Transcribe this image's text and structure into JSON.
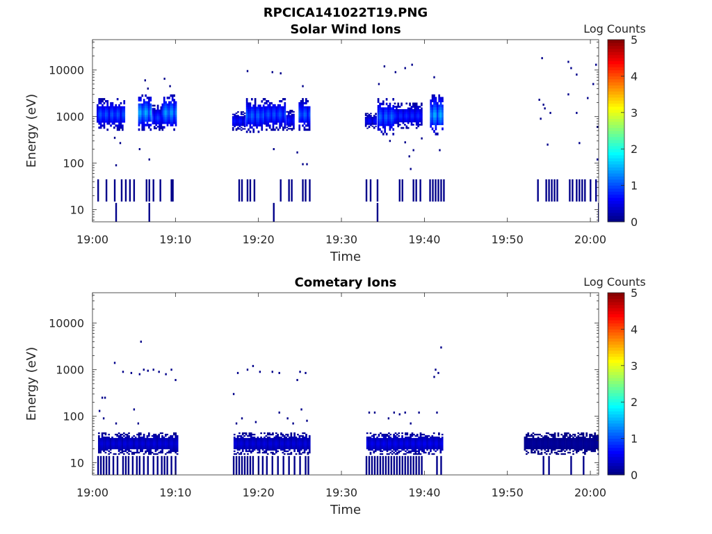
{
  "figure_title": "RPCICA141022T19.PNG",
  "colors": {
    "background": "#ffffff",
    "axis": "#262626",
    "colormap": [
      "#00008f",
      "#0000ff",
      "#00ffff",
      "#ffff00",
      "#ff0000",
      "#800000"
    ]
  },
  "chart_data": [
    {
      "type": "heatmap",
      "title": "Solar Wind Ions",
      "xlabel": "Time",
      "ylabel": "Energy (eV)",
      "yscale": "log",
      "ylim": [
        5.5,
        45000
      ],
      "xlim": [
        "19:00",
        "20:01"
      ],
      "xticks": [
        "19:00",
        "19:10",
        "19:20",
        "19:30",
        "19:40",
        "19:50",
        "20:00"
      ],
      "yticks": [
        "10",
        "100",
        "1000",
        "10000"
      ],
      "colorbar": {
        "label": "Log Counts",
        "ticks": [
          "0",
          "1",
          "2",
          "3",
          "4",
          "5"
        ],
        "range": [
          0,
          5
        ]
      },
      "grid": false,
      "blocks": [
        {
          "t_start": "19:00:30",
          "t_end": "19:03:50",
          "e_min": 500,
          "e_max": 2500,
          "peak": 1.1
        },
        {
          "t_start": "19:05:30",
          "t_end": "19:07:10",
          "e_min": 500,
          "e_max": 3000,
          "peak": 1.6
        },
        {
          "t_start": "19:07:10",
          "t_end": "19:08:20",
          "e_min": 500,
          "e_max": 1800,
          "peak": 1.0
        },
        {
          "t_start": "19:08:20",
          "t_end": "19:10:10",
          "e_min": 500,
          "e_max": 3000,
          "peak": 1.5
        },
        {
          "t_start": "19:16:50",
          "t_end": "19:18:30",
          "e_min": 500,
          "e_max": 1300,
          "peak": 0.8
        },
        {
          "t_start": "19:18:30",
          "t_end": "19:20:40",
          "e_min": 450,
          "e_max": 2500,
          "peak": 1.2
        },
        {
          "t_start": "19:20:40",
          "t_end": "19:23:20",
          "e_min": 500,
          "e_max": 2500,
          "peak": 1.1
        },
        {
          "t_start": "19:23:20",
          "t_end": "19:24:20",
          "e_min": 500,
          "e_max": 1400,
          "peak": 0.8
        },
        {
          "t_start": "19:24:50",
          "t_end": "19:26:20",
          "e_min": 500,
          "e_max": 2500,
          "peak": 1.2
        },
        {
          "t_start": "19:32:50",
          "t_end": "19:34:20",
          "e_min": 550,
          "e_max": 1200,
          "peak": 0.7
        },
        {
          "t_start": "19:34:20",
          "t_end": "19:36:20",
          "e_min": 400,
          "e_max": 2500,
          "peak": 1.2
        },
        {
          "t_start": "19:36:20",
          "t_end": "19:39:50",
          "e_min": 550,
          "e_max": 2000,
          "peak": 0.9
        },
        {
          "t_start": "19:40:40",
          "t_end": "19:42:20",
          "e_min": 400,
          "e_max": 3000,
          "peak": 1.6
        }
      ],
      "scatter_pixels": [
        {
          "t": "19:02:40",
          "e": 350
        },
        {
          "t": "19:03:20",
          "e": 270
        },
        {
          "t": "19:05:40",
          "e": 200
        },
        {
          "t": "19:06:20",
          "e": 6000
        },
        {
          "t": "19:06:40",
          "e": 4000
        },
        {
          "t": "19:08:40",
          "e": 6500
        },
        {
          "t": "19:09:20",
          "e": 4500
        },
        {
          "t": "19:06:50",
          "e": 120
        },
        {
          "t": "19:02:50",
          "e": 90
        },
        {
          "t": "19:18:40",
          "e": 9500
        },
        {
          "t": "19:21:40",
          "e": 9000
        },
        {
          "t": "19:22:40",
          "e": 8500
        },
        {
          "t": "19:21:50",
          "e": 200
        },
        {
          "t": "19:24:40",
          "e": 170
        },
        {
          "t": "19:25:20",
          "e": 4500
        },
        {
          "t": "19:25:20",
          "e": 95
        },
        {
          "t": "19:25:50",
          "e": 95
        },
        {
          "t": "19:35:10",
          "e": 12000
        },
        {
          "t": "19:36:30",
          "e": 9000
        },
        {
          "t": "19:37:40",
          "e": 11000
        },
        {
          "t": "19:38:30",
          "e": 13000
        },
        {
          "t": "19:34:30",
          "e": 5000
        },
        {
          "t": "19:35:50",
          "e": 300
        },
        {
          "t": "19:37:40",
          "e": 280
        },
        {
          "t": "19:38:10",
          "e": 140
        },
        {
          "t": "19:38:40",
          "e": 190
        },
        {
          "t": "19:39:40",
          "e": 340
        },
        {
          "t": "19:41:10",
          "e": 7000
        },
        {
          "t": "19:41:50",
          "e": 190
        },
        {
          "t": "19:38:20",
          "e": 75
        },
        {
          "t": "19:53:50",
          "e": 2300
        },
        {
          "t": "19:54:20",
          "e": 1800
        },
        {
          "t": "19:54:30",
          "e": 1500
        },
        {
          "t": "19:54:00",
          "e": 900
        },
        {
          "t": "19:55:10",
          "e": 1200
        },
        {
          "t": "19:54:50",
          "e": 250
        },
        {
          "t": "19:54:10",
          "e": 18000
        },
        {
          "t": "19:57:20",
          "e": 15000
        },
        {
          "t": "19:57:40",
          "e": 11000
        },
        {
          "t": "19:58:20",
          "e": 8000
        },
        {
          "t": "19:57:20",
          "e": 3000
        },
        {
          "t": "19:58:20",
          "e": 1200
        },
        {
          "t": "19:58:40",
          "e": 270
        },
        {
          "t": "19:59:40",
          "e": 2500
        },
        {
          "t": "20:00:20",
          "e": 5000
        },
        {
          "t": "20:00:40",
          "e": 13000
        },
        {
          "t": "20:00:50",
          "e": 600
        },
        {
          "t": "20:00:50",
          "e": 120
        }
      ],
      "low_energy_band": {
        "e_min": 15,
        "e_max": 45,
        "times": [
          "19:00:40",
          "19:01:40",
          "19:02:40",
          "19:03:30",
          "19:04:00",
          "19:04:30",
          "19:05:00",
          "19:06:30",
          "19:06:50",
          "19:07:20",
          "19:08:10",
          "19:09:30",
          "19:09:40",
          "19:17:40",
          "19:18:00",
          "19:18:40",
          "19:19:00",
          "19:19:30",
          "19:22:40",
          "19:23:40",
          "19:24:00",
          "19:25:20",
          "19:25:40",
          "19:26:10",
          "19:33:00",
          "19:33:30",
          "19:34:20",
          "19:37:00",
          "19:37:20",
          "19:38:40",
          "19:39:00",
          "19:39:30",
          "19:40:40",
          "19:41:00",
          "19:41:20",
          "19:41:40",
          "19:42:00",
          "19:42:20",
          "19:53:40",
          "19:54:40",
          "19:55:00",
          "19:55:20",
          "19:55:40",
          "19:56:00",
          "19:57:30",
          "19:57:50",
          "19:58:20",
          "19:58:40",
          "19:59:00",
          "19:59:20",
          "20:00:00",
          "20:00:40"
        ]
      },
      "lowest_energy_band": {
        "e_min": 5.5,
        "e_max": 14,
        "times": [
          "19:02:50",
          "19:06:50",
          "19:21:50",
          "19:34:20",
          "20:01:00"
        ]
      }
    },
    {
      "type": "heatmap",
      "title": "Cometary Ions",
      "xlabel": "Time",
      "ylabel": "Energy (eV)",
      "yscale": "log",
      "ylim": [
        5.5,
        45000
      ],
      "xlim": [
        "19:00",
        "20:01"
      ],
      "xticks": [
        "19:00",
        "19:10",
        "19:20",
        "19:30",
        "19:40",
        "19:50",
        "20:00"
      ],
      "yticks": [
        "10",
        "100",
        "1000",
        "10000"
      ],
      "colorbar": {
        "label": "Log Counts",
        "ticks": [
          "0",
          "1",
          "2",
          "3",
          "4",
          "5"
        ],
        "range": [
          0,
          5
        ]
      },
      "grid": false,
      "blocks": [
        {
          "t_start": "19:00:40",
          "t_end": "19:10:20",
          "e_min": 15,
          "e_max": 45,
          "peak": 0.5
        },
        {
          "t_start": "19:17:00",
          "t_end": "19:26:20",
          "e_min": 15,
          "e_max": 45,
          "peak": 0.5
        },
        {
          "t_start": "19:33:00",
          "t_end": "19:42:20",
          "e_min": 15,
          "e_max": 45,
          "peak": 0.6
        },
        {
          "t_start": "19:52:00",
          "t_end": "20:01:00",
          "e_min": 15,
          "e_max": 45,
          "peak": 0.15
        }
      ],
      "lowest_energy_band": {
        "e_min": 5.5,
        "e_max": 14,
        "times": [
          "19:00:40",
          "19:01:00",
          "19:01:20",
          "19:01:40",
          "19:02:00",
          "19:02:30",
          "19:03:00",
          "19:03:40",
          "19:04:00",
          "19:04:20",
          "19:04:50",
          "19:05:20",
          "19:05:40",
          "19:06:10",
          "19:06:40",
          "19:07:20",
          "19:07:50",
          "19:08:20",
          "19:08:40",
          "19:09:00",
          "19:09:30",
          "19:10:00",
          "19:17:00",
          "19:17:20",
          "19:17:40",
          "19:18:00",
          "19:18:20",
          "19:18:40",
          "19:19:00",
          "19:19:20",
          "19:20:00",
          "19:20:30",
          "19:21:00",
          "19:21:40",
          "19:22:20",
          "19:23:00",
          "19:23:40",
          "19:24:20",
          "19:25:00",
          "19:25:40",
          "19:26:00",
          "19:33:00",
          "19:33:20",
          "19:33:40",
          "19:34:00",
          "19:34:20",
          "19:34:40",
          "19:35:00",
          "19:35:20",
          "19:35:40",
          "19:36:00",
          "19:36:20",
          "19:36:40",
          "19:37:00",
          "19:37:20",
          "19:37:40",
          "19:38:00",
          "19:38:20",
          "19:38:40",
          "19:39:00",
          "19:39:20",
          "19:39:40",
          "19:41:30",
          "19:42:00",
          "19:54:20",
          "19:55:00",
          "19:57:40",
          "19:59:10"
        ]
      },
      "scatter_pixels": [
        {
          "t": "19:00:50",
          "e": 130
        },
        {
          "t": "19:01:10",
          "e": 250
        },
        {
          "t": "19:01:30",
          "e": 250
        },
        {
          "t": "19:01:20",
          "e": 90
        },
        {
          "t": "19:02:40",
          "e": 1400
        },
        {
          "t": "19:03:40",
          "e": 900
        },
        {
          "t": "19:04:40",
          "e": 850
        },
        {
          "t": "19:02:50",
          "e": 70
        },
        {
          "t": "19:05:00",
          "e": 140
        },
        {
          "t": "19:05:30",
          "e": 70
        },
        {
          "t": "19:05:50",
          "e": 4000
        },
        {
          "t": "19:05:40",
          "e": 800
        },
        {
          "t": "19:06:10",
          "e": 1000
        },
        {
          "t": "19:06:40",
          "e": 950
        },
        {
          "t": "19:07:20",
          "e": 1000
        },
        {
          "t": "19:08:00",
          "e": 900
        },
        {
          "t": "19:08:50",
          "e": 800
        },
        {
          "t": "19:09:30",
          "e": 1000
        },
        {
          "t": "19:10:00",
          "e": 600
        },
        {
          "t": "19:17:30",
          "e": 850
        },
        {
          "t": "19:17:00",
          "e": 300
        },
        {
          "t": "19:17:20",
          "e": 70
        },
        {
          "t": "19:18:40",
          "e": 1000
        },
        {
          "t": "19:19:20",
          "e": 1200
        },
        {
          "t": "19:20:10",
          "e": 900
        },
        {
          "t": "19:21:40",
          "e": 900
        },
        {
          "t": "19:22:30",
          "e": 850
        },
        {
          "t": "19:18:00",
          "e": 90
        },
        {
          "t": "19:19:40",
          "e": 75
        },
        {
          "t": "19:22:30",
          "e": 120
        },
        {
          "t": "19:23:30",
          "e": 90
        },
        {
          "t": "19:24:10",
          "e": 70
        },
        {
          "t": "19:25:10",
          "e": 140
        },
        {
          "t": "19:25:00",
          "e": 900
        },
        {
          "t": "19:25:40",
          "e": 850
        },
        {
          "t": "19:24:40",
          "e": 600
        },
        {
          "t": "19:25:50",
          "e": 80
        },
        {
          "t": "19:33:20",
          "e": 120
        },
        {
          "t": "19:34:00",
          "e": 120
        },
        {
          "t": "19:35:40",
          "e": 90
        },
        {
          "t": "19:36:20",
          "e": 120
        },
        {
          "t": "19:37:00",
          "e": 110
        },
        {
          "t": "19:37:40",
          "e": 120
        },
        {
          "t": "19:38:20",
          "e": 70
        },
        {
          "t": "19:39:20",
          "e": 120
        },
        {
          "t": "19:41:20",
          "e": 1000
        },
        {
          "t": "19:41:40",
          "e": 850
        },
        {
          "t": "19:41:10",
          "e": 700
        },
        {
          "t": "19:42:00",
          "e": 3000
        },
        {
          "t": "19:41:30",
          "e": 120
        }
      ]
    }
  ]
}
